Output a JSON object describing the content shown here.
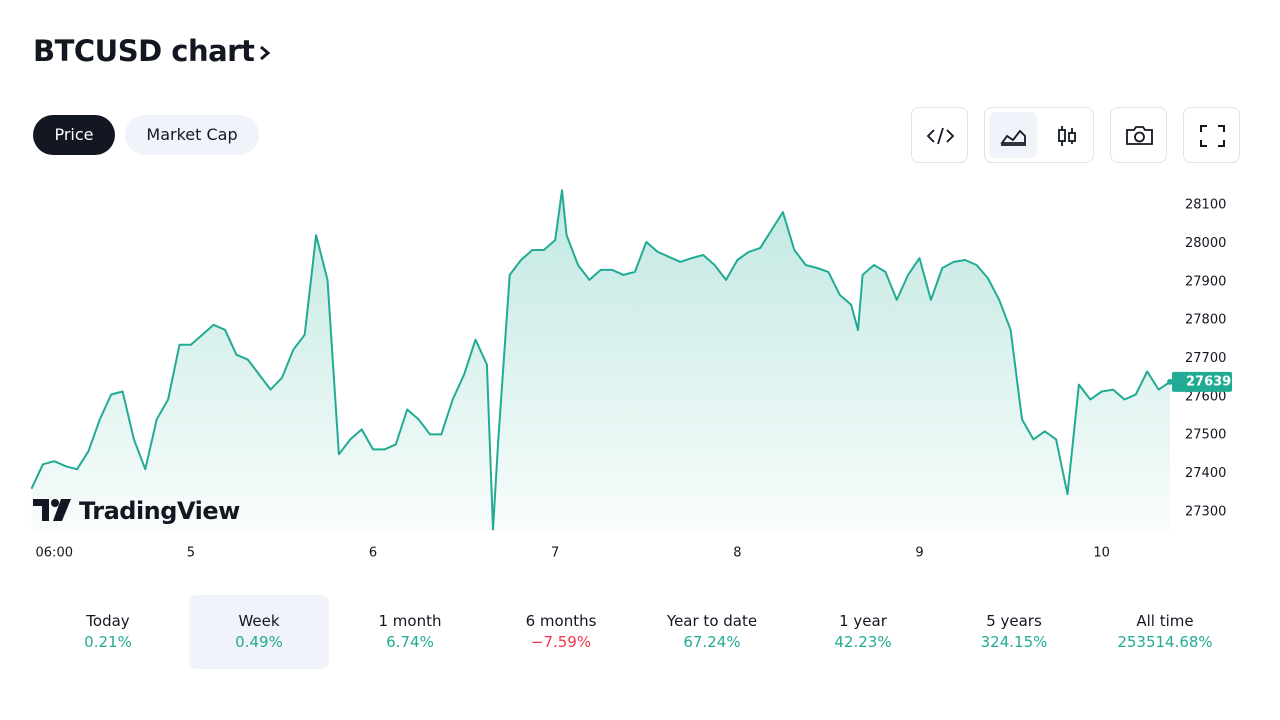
{
  "header": {
    "title": "BTCUSD chart"
  },
  "tabs": [
    "Price",
    "Market Cap"
  ],
  "active_tab": 0,
  "logo": "TradingView",
  "chart_data": {
    "type": "area",
    "series": [
      {
        "name": "BTCUSD",
        "color": "#22ab94",
        "x": [
          3,
          4.5,
          6,
          7.5,
          9,
          10.5,
          12,
          13.5,
          15,
          16.5,
          18,
          19.5,
          21,
          22.5,
          24,
          25.5,
          27,
          28.5,
          30,
          31.5,
          33,
          34.5,
          36,
          37.5,
          39,
          40.5,
          42,
          43.5,
          45,
          46.5,
          48,
          49.5,
          51,
          52.5,
          54,
          55.5,
          57,
          58.5,
          60,
          61.5,
          63,
          63.8,
          64.5,
          66,
          67.5,
          69,
          70.5,
          72,
          72.9,
          73.5,
          75,
          76.5,
          78,
          79.5,
          81,
          82.5,
          84,
          85.5,
          87,
          88.5,
          90,
          91.5,
          93,
          94.5,
          96,
          97.5,
          99,
          100.5,
          102,
          103.5,
          105,
          106.5,
          108,
          109.5,
          111,
          111.9,
          112.5,
          114,
          115.5,
          117,
          118.5,
          120,
          121.5,
          123,
          124.5,
          126,
          127.5,
          129,
          130.5,
          132,
          133.5,
          135,
          136.5,
          138,
          139.5,
          141,
          142.5,
          144,
          145.5,
          147,
          148.5,
          150,
          151.5,
          153
        ],
        "values": [
          27360,
          27424,
          27432,
          27419,
          27411,
          27458,
          27541,
          27606,
          27614,
          27489,
          27411,
          27541,
          27593,
          27736,
          27736,
          27762,
          27788,
          27775,
          27710,
          27697,
          27658,
          27619,
          27650,
          27723,
          27762,
          28022,
          27905,
          27450,
          27489,
          27515,
          27463,
          27463,
          27476,
          27567,
          27541,
          27502,
          27502,
          27593,
          27658,
          27749,
          27684,
          27254,
          27489,
          27918,
          27957,
          27983,
          27983,
          28009,
          28139,
          28022,
          27944,
          27905,
          27931,
          27931,
          27918,
          27926,
          28004,
          27978,
          27965,
          27952,
          27962,
          27970,
          27944,
          27905,
          27957,
          27978,
          27988,
          28035,
          28082,
          27983,
          27944,
          27936,
          27926,
          27866,
          27840,
          27774,
          27918,
          27944,
          27926,
          27853,
          27918,
          27962,
          27853,
          27936,
          27952,
          27957,
          27944,
          27910,
          27853,
          27775,
          27541,
          27489,
          27510,
          27489,
          27346,
          27632,
          27593,
          27614,
          27619,
          27593,
          27606,
          27666,
          27619,
          27639
        ]
      }
    ],
    "xlim": [
      3.2,
      153
    ],
    "xticks": [
      {
        "value": 6,
        "label": "06:00"
      },
      {
        "value": 24,
        "label": "5"
      },
      {
        "value": 48,
        "label": "6"
      },
      {
        "value": 72,
        "label": "7"
      },
      {
        "value": 96,
        "label": "8"
      },
      {
        "value": 120,
        "label": "9"
      },
      {
        "value": 144,
        "label": "10"
      }
    ],
    "ylim": [
      27250,
      28150
    ],
    "yticks": [
      27300,
      27400,
      27500,
      27600,
      27700,
      27800,
      27900,
      28000,
      28100
    ],
    "grid": false
  },
  "performance": [
    {
      "label": "Today",
      "value": "0.21%",
      "color": "#22ab94"
    },
    {
      "label": "Week",
      "value": "0.49%",
      "color": "#22ab94"
    },
    {
      "label": "1 month",
      "value": "6.74%",
      "color": "#22ab94"
    },
    {
      "label": "6 months",
      "value": "−7.59%",
      "color": "#f23645"
    },
    {
      "label": "Year to date",
      "value": "67.24%",
      "color": "#22ab94"
    },
    {
      "label": "1 year",
      "value": "42.23%",
      "color": "#22ab94"
    },
    {
      "label": "5 years",
      "value": "324.15%",
      "color": "#22ab94"
    },
    {
      "label": "All time",
      "value": "253514.68%",
      "color": "#22ab94"
    }
  ],
  "selected_period": 1
}
